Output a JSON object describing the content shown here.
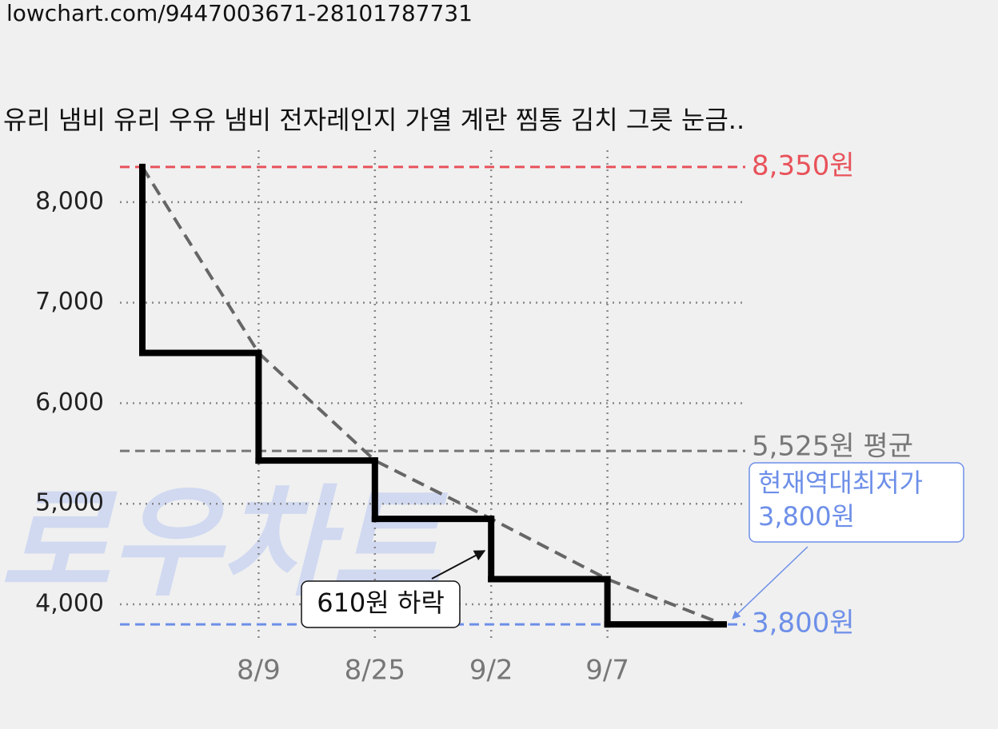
{
  "url": "lowchart.com/9447003671-28101787731",
  "chart_data": {
    "type": "step",
    "title": "유리 냄비 유리 우유 냄비 전자레인지 가열 계란 찜통 김치 그릇 눈금..",
    "watermark": "로우차트",
    "categories": [
      null,
      "8/9",
      "8/25",
      "9/2",
      "9/7",
      null
    ],
    "values": [
      8350,
      6500,
      5430,
      4850,
      4250,
      3800
    ],
    "color": "#000000",
    "trend_color": "#666666",
    "ylim": [
      3650,
      8500
    ],
    "yticks": [
      {
        "value": 4000,
        "label": "4,000"
      },
      {
        "value": 5000,
        "label": "5,000"
      },
      {
        "value": 6000,
        "label": "6,000"
      },
      {
        "value": 7000,
        "label": "7,000"
      },
      {
        "value": 8000,
        "label": "8,000"
      }
    ],
    "grid": true,
    "reference_lines": [
      {
        "value": 8350,
        "label": "8,350원",
        "color": "#e8525a"
      },
      {
        "value": 5525,
        "label": "5,525원 평균",
        "color": "#777777"
      },
      {
        "value": 3800,
        "label": "3,800원",
        "color": "#6d8fe8"
      }
    ],
    "annotations": [
      {
        "text": "610원 하락"
      },
      {
        "text": [
          "현재역대최저가",
          "3,800원"
        ],
        "color": "#6d8fe8"
      }
    ]
  }
}
